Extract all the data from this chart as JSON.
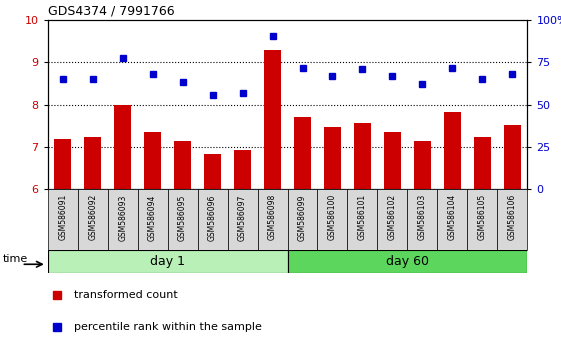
{
  "title": "GDS4374 / 7991766",
  "samples": [
    "GSM586091",
    "GSM586092",
    "GSM586093",
    "GSM586094",
    "GSM586095",
    "GSM586096",
    "GSM586097",
    "GSM586098",
    "GSM586099",
    "GSM586100",
    "GSM586101",
    "GSM586102",
    "GSM586103",
    "GSM586104",
    "GSM586105",
    "GSM586106"
  ],
  "bar_values": [
    7.2,
    7.23,
    8.0,
    7.35,
    7.15,
    6.83,
    6.92,
    9.3,
    7.72,
    7.47,
    7.58,
    7.35,
    7.15,
    7.82,
    7.25,
    7.52
  ],
  "dot_values": [
    8.6,
    8.62,
    9.1,
    8.72,
    8.55,
    8.22,
    8.28,
    9.62,
    8.88,
    8.68,
    8.85,
    8.68,
    8.48,
    8.88,
    8.62,
    8.72
  ],
  "bar_color": "#cc0000",
  "dot_color": "#0000cc",
  "ylim_left": [
    6,
    10
  ],
  "ylim_right": [
    0,
    100
  ],
  "yticks_left": [
    6,
    7,
    8,
    9,
    10
  ],
  "yticks_right": [
    0,
    25,
    50,
    75,
    100
  ],
  "ytick_labels_right": [
    "0",
    "25",
    "50",
    "75",
    "100%"
  ],
  "day1_color": "#b8f0b8",
  "day60_color": "#5cd65c",
  "time_label": "time",
  "legend": [
    {
      "label": "transformed count",
      "color": "#cc0000"
    },
    {
      "label": "percentile rank within the sample",
      "color": "#0000cc"
    }
  ],
  "bar_width": 0.55,
  "tick_label_color_left": "#cc0000",
  "tick_label_color_right": "#0000cc",
  "label_box_color": "#d8d8d8"
}
